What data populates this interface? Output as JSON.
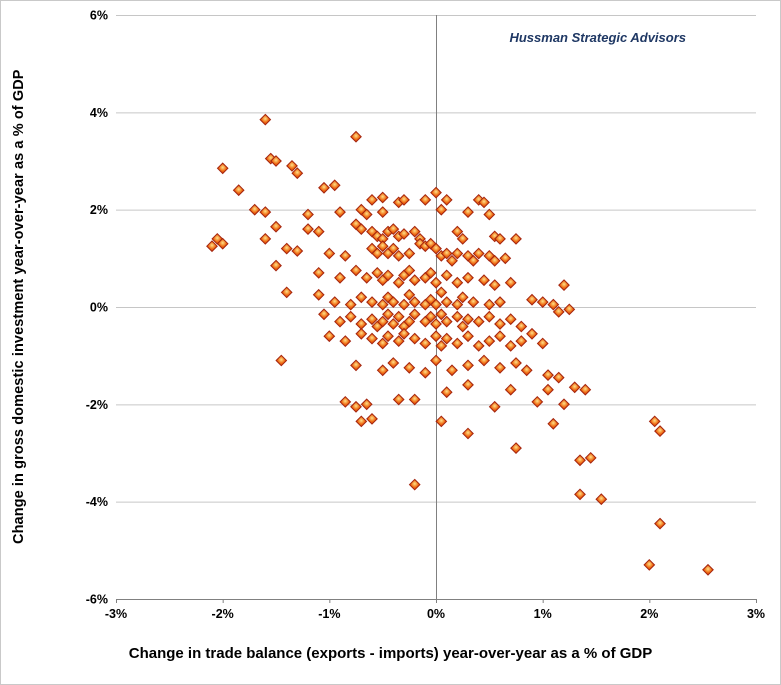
{
  "annotation": "Hussman Strategic Advisors",
  "colors": {
    "gridline": "#c6c6c6",
    "axis_line": "#808080",
    "marker_edge": "#a3240f",
    "marker_fill_outer": "#c3270d",
    "marker_fill_mid": "#ef6a12",
    "marker_fill_center": "#ffe289",
    "annotation_text": "#1f3864",
    "text": "#000000"
  },
  "chart_data": {
    "type": "scatter",
    "title": "",
    "xlabel": "Change in trade balance (exports - imports) year-over-year as a % of GDP",
    "ylabel": "Change in gross domestic investment year-over-year as a % of GDP",
    "annotation": "Hussman Strategic Advisors",
    "xlim": [
      -3,
      3
    ],
    "ylim": [
      -6,
      6
    ],
    "x_ticks": [
      -3,
      -2,
      -1,
      0,
      1,
      2,
      3
    ],
    "x_tick_labels": [
      "-3%",
      "-2%",
      "-1%",
      "0%",
      "1%",
      "2%",
      "3%"
    ],
    "y_ticks": [
      6,
      4,
      2,
      0,
      -2,
      -4,
      -6
    ],
    "y_tick_labels": [
      "6%",
      "4%",
      "2%",
      "0%",
      "-2%",
      "-4%",
      "-6%"
    ],
    "grid": "horizontal",
    "zero_line": "vertical",
    "legend": "none",
    "marker": "diamond",
    "points": [
      [
        -1.6,
        3.85
      ],
      [
        -0.75,
        3.5
      ],
      [
        -1.55,
        3.05
      ],
      [
        -1.5,
        3.0
      ],
      [
        -1.35,
        2.9
      ],
      [
        -1.3,
        2.75
      ],
      [
        -2.0,
        2.85
      ],
      [
        -1.05,
        2.45
      ],
      [
        -0.95,
        2.5
      ],
      [
        -1.85,
        2.4
      ],
      [
        -0.6,
        2.2
      ],
      [
        -0.5,
        2.25
      ],
      [
        -0.35,
        2.15
      ],
      [
        -0.3,
        2.2
      ],
      [
        -0.1,
        2.2
      ],
      [
        0.0,
        2.35
      ],
      [
        0.1,
        2.2
      ],
      [
        0.4,
        2.2
      ],
      [
        0.45,
        2.15
      ],
      [
        -1.7,
        2.0
      ],
      [
        -1.6,
        1.95
      ],
      [
        -1.2,
        1.9
      ],
      [
        -0.9,
        1.95
      ],
      [
        -0.7,
        2.0
      ],
      [
        -0.65,
        1.9
      ],
      [
        -0.5,
        1.95
      ],
      [
        0.05,
        2.0
      ],
      [
        0.3,
        1.95
      ],
      [
        0.5,
        1.9
      ],
      [
        -2.05,
        1.4
      ],
      [
        -1.6,
        1.4
      ],
      [
        -1.5,
        1.65
      ],
      [
        -1.2,
        1.6
      ],
      [
        -1.1,
        1.55
      ],
      [
        -0.75,
        1.7
      ],
      [
        -0.7,
        1.6
      ],
      [
        -0.6,
        1.55
      ],
      [
        -0.55,
        1.45
      ],
      [
        -0.5,
        1.4
      ],
      [
        -0.45,
        1.55
      ],
      [
        -0.4,
        1.6
      ],
      [
        -0.35,
        1.45
      ],
      [
        -0.3,
        1.5
      ],
      [
        -0.2,
        1.55
      ],
      [
        -0.15,
        1.4
      ],
      [
        0.2,
        1.55
      ],
      [
        0.25,
        1.4
      ],
      [
        0.55,
        1.45
      ],
      [
        0.6,
        1.4
      ],
      [
        0.75,
        1.4
      ],
      [
        -2.1,
        1.25
      ],
      [
        -2.0,
        1.3
      ],
      [
        -1.4,
        1.2
      ],
      [
        -1.3,
        1.15
      ],
      [
        -1.0,
        1.1
      ],
      [
        -0.85,
        1.05
      ],
      [
        -0.6,
        1.2
      ],
      [
        -0.55,
        1.1
      ],
      [
        -0.5,
        1.25
      ],
      [
        -0.45,
        1.1
      ],
      [
        -0.4,
        1.2
      ],
      [
        -0.35,
        1.05
      ],
      [
        -0.25,
        1.1
      ],
      [
        -0.15,
        1.3
      ],
      [
        -0.1,
        1.25
      ],
      [
        -0.05,
        1.3
      ],
      [
        0.0,
        1.2
      ],
      [
        0.05,
        1.05
      ],
      [
        0.1,
        1.1
      ],
      [
        0.15,
        0.95
      ],
      [
        0.2,
        1.1
      ],
      [
        0.3,
        1.05
      ],
      [
        0.35,
        0.95
      ],
      [
        0.4,
        1.1
      ],
      [
        0.5,
        1.05
      ],
      [
        0.55,
        0.95
      ],
      [
        0.65,
        1.0
      ],
      [
        -1.5,
        0.85
      ],
      [
        -1.1,
        0.7
      ],
      [
        -0.9,
        0.6
      ],
      [
        -0.75,
        0.75
      ],
      [
        -0.65,
        0.6
      ],
      [
        -0.55,
        0.7
      ],
      [
        -0.5,
        0.55
      ],
      [
        -0.45,
        0.65
      ],
      [
        -0.35,
        0.5
      ],
      [
        -0.3,
        0.65
      ],
      [
        -0.25,
        0.75
      ],
      [
        -0.2,
        0.55
      ],
      [
        -0.1,
        0.6
      ],
      [
        -0.05,
        0.7
      ],
      [
        0.0,
        0.5
      ],
      [
        0.1,
        0.65
      ],
      [
        0.2,
        0.5
      ],
      [
        0.3,
        0.6
      ],
      [
        0.45,
        0.55
      ],
      [
        0.55,
        0.45
      ],
      [
        0.7,
        0.5
      ],
      [
        1.2,
        0.45
      ],
      [
        -1.4,
        0.3
      ],
      [
        -1.1,
        0.25
      ],
      [
        -0.95,
        0.1
      ],
      [
        -0.8,
        0.05
      ],
      [
        -0.7,
        0.2
      ],
      [
        -0.6,
        0.1
      ],
      [
        -0.5,
        0.05
      ],
      [
        -0.45,
        0.2
      ],
      [
        -0.4,
        0.1
      ],
      [
        -0.3,
        0.05
      ],
      [
        -0.25,
        0.25
      ],
      [
        -0.2,
        0.1
      ],
      [
        -0.1,
        0.05
      ],
      [
        -0.05,
        0.15
      ],
      [
        0.0,
        0.05
      ],
      [
        0.05,
        0.3
      ],
      [
        0.1,
        0.1
      ],
      [
        0.2,
        0.05
      ],
      [
        0.25,
        0.2
      ],
      [
        0.35,
        0.1
      ],
      [
        0.5,
        0.05
      ],
      [
        0.6,
        0.1
      ],
      [
        0.9,
        0.15
      ],
      [
        1.0,
        0.1
      ],
      [
        1.1,
        0.05
      ],
      [
        -1.05,
        -0.15
      ],
      [
        -0.9,
        -0.3
      ],
      [
        -0.8,
        -0.2
      ],
      [
        -0.7,
        -0.35
      ],
      [
        -0.6,
        -0.25
      ],
      [
        -0.55,
        -0.4
      ],
      [
        -0.5,
        -0.3
      ],
      [
        -0.45,
        -0.15
      ],
      [
        -0.4,
        -0.35
      ],
      [
        -0.35,
        -0.2
      ],
      [
        -0.3,
        -0.4
      ],
      [
        -0.25,
        -0.3
      ],
      [
        -0.2,
        -0.15
      ],
      [
        -0.1,
        -0.3
      ],
      [
        -0.05,
        -0.2
      ],
      [
        0.0,
        -0.35
      ],
      [
        0.05,
        -0.15
      ],
      [
        0.1,
        -0.3
      ],
      [
        0.2,
        -0.2
      ],
      [
        0.25,
        -0.4
      ],
      [
        0.3,
        -0.25
      ],
      [
        0.4,
        -0.3
      ],
      [
        0.5,
        -0.2
      ],
      [
        0.6,
        -0.35
      ],
      [
        0.7,
        -0.25
      ],
      [
        0.8,
        -0.4
      ],
      [
        1.15,
        -0.1
      ],
      [
        1.25,
        -0.05
      ],
      [
        -1.0,
        -0.6
      ],
      [
        -0.85,
        -0.7
      ],
      [
        -0.7,
        -0.55
      ],
      [
        -0.6,
        -0.65
      ],
      [
        -0.5,
        -0.75
      ],
      [
        -0.45,
        -0.6
      ],
      [
        -0.35,
        -0.7
      ],
      [
        -0.3,
        -0.55
      ],
      [
        -0.2,
        -0.65
      ],
      [
        -0.1,
        -0.75
      ],
      [
        0.0,
        -0.6
      ],
      [
        0.05,
        -0.8
      ],
      [
        0.1,
        -0.65
      ],
      [
        0.2,
        -0.75
      ],
      [
        0.3,
        -0.6
      ],
      [
        0.4,
        -0.8
      ],
      [
        0.5,
        -0.7
      ],
      [
        0.6,
        -0.6
      ],
      [
        0.7,
        -0.8
      ],
      [
        0.8,
        -0.7
      ],
      [
        0.9,
        -0.55
      ],
      [
        1.0,
        -0.75
      ],
      [
        -1.45,
        -1.1
      ],
      [
        -0.75,
        -1.2
      ],
      [
        -0.5,
        -1.3
      ],
      [
        -0.4,
        -1.15
      ],
      [
        -0.25,
        -1.25
      ],
      [
        -0.1,
        -1.35
      ],
      [
        0.0,
        -1.1
      ],
      [
        0.15,
        -1.3
      ],
      [
        0.3,
        -1.2
      ],
      [
        0.45,
        -1.1
      ],
      [
        0.6,
        -1.25
      ],
      [
        0.75,
        -1.15
      ],
      [
        0.85,
        -1.3
      ],
      [
        1.05,
        -1.4
      ],
      [
        1.15,
        -1.45
      ],
      [
        -0.85,
        -1.95
      ],
      [
        -0.75,
        -2.05
      ],
      [
        -0.65,
        -2.0
      ],
      [
        -0.35,
        -1.9
      ],
      [
        -0.2,
        -1.9
      ],
      [
        0.1,
        -1.75
      ],
      [
        0.3,
        -1.6
      ],
      [
        0.55,
        -2.05
      ],
      [
        0.7,
        -1.7
      ],
      [
        0.95,
        -1.95
      ],
      [
        1.05,
        -1.7
      ],
      [
        1.2,
        -2.0
      ],
      [
        1.3,
        -1.65
      ],
      [
        1.4,
        -1.7
      ],
      [
        -0.7,
        -2.35
      ],
      [
        -0.6,
        -2.3
      ],
      [
        0.05,
        -2.35
      ],
      [
        0.3,
        -2.6
      ],
      [
        0.75,
        -2.9
      ],
      [
        1.1,
        -2.4
      ],
      [
        2.05,
        -2.35
      ],
      [
        2.1,
        -2.55
      ],
      [
        -0.2,
        -3.65
      ],
      [
        1.35,
        -3.15
      ],
      [
        1.45,
        -3.1
      ],
      [
        1.35,
        -3.85
      ],
      [
        1.55,
        -3.95
      ],
      [
        2.1,
        -4.45
      ],
      [
        2.0,
        -5.3
      ],
      [
        2.55,
        -5.4
      ]
    ]
  }
}
